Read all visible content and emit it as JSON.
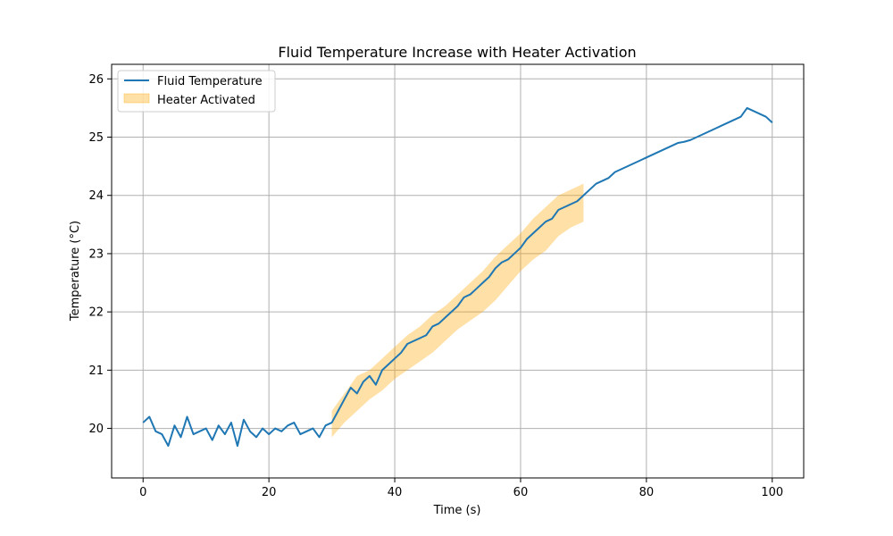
{
  "chart_data": {
    "type": "line",
    "title": "Fluid Temperature Increase with Heater Activation",
    "xlabel": "Time (s)",
    "ylabel": "Temperature (°C)",
    "xlim": [
      -5,
      105
    ],
    "ylim": [
      19.15,
      26.25
    ],
    "xticks": [
      0,
      20,
      40,
      60,
      80,
      100
    ],
    "yticks": [
      20,
      21,
      22,
      23,
      24,
      25,
      26
    ],
    "grid": true,
    "legend_position": "top-left",
    "series": [
      {
        "name": "Fluid Temperature",
        "type": "line",
        "color": "#1f77b4",
        "x": [
          0,
          1,
          2,
          3,
          4,
          5,
          6,
          7,
          8,
          9,
          10,
          11,
          12,
          13,
          14,
          15,
          16,
          17,
          18,
          19,
          20,
          21,
          22,
          23,
          24,
          25,
          26,
          27,
          28,
          29,
          30,
          31,
          32,
          33,
          34,
          35,
          36,
          37,
          38,
          39,
          40,
          41,
          42,
          43,
          44,
          45,
          46,
          47,
          48,
          49,
          50,
          51,
          52,
          53,
          54,
          55,
          56,
          57,
          58,
          59,
          60,
          61,
          62,
          63,
          64,
          65,
          66,
          67,
          68,
          69,
          70,
          71,
          72,
          73,
          74,
          75,
          76,
          77,
          78,
          79,
          80,
          81,
          82,
          83,
          84,
          85,
          86,
          87,
          88,
          89,
          90,
          91,
          92,
          93,
          94,
          95,
          96,
          97,
          98,
          99,
          100
        ],
        "y": [
          20.1,
          20.2,
          19.95,
          19.9,
          19.7,
          20.05,
          19.85,
          20.2,
          19.9,
          19.95,
          20.0,
          19.8,
          20.05,
          19.9,
          20.1,
          19.7,
          20.15,
          19.95,
          19.85,
          20.0,
          19.9,
          20.0,
          19.95,
          20.05,
          20.1,
          19.9,
          19.95,
          20.0,
          19.85,
          20.05,
          20.1,
          20.3,
          20.5,
          20.7,
          20.6,
          20.8,
          20.9,
          20.75,
          21.0,
          21.1,
          21.2,
          21.3,
          21.45,
          21.5,
          21.55,
          21.6,
          21.75,
          21.8,
          21.9,
          22.0,
          22.1,
          22.25,
          22.3,
          22.4,
          22.5,
          22.6,
          22.75,
          22.85,
          22.9,
          23.0,
          23.1,
          23.25,
          23.35,
          23.45,
          23.55,
          23.6,
          23.75,
          23.8,
          23.85,
          23.9,
          24.0,
          24.1,
          24.2,
          24.25,
          24.3,
          24.4,
          24.45,
          24.5,
          24.55,
          24.6,
          24.65,
          24.7,
          24.75,
          24.8,
          24.85,
          24.9,
          24.92,
          24.95,
          25.0,
          25.05,
          25.1,
          25.15,
          25.2,
          25.25,
          25.3,
          25.35,
          25.5,
          25.45,
          25.4,
          25.35,
          25.25
        ]
      },
      {
        "name": "Heater Activated",
        "type": "band",
        "color": "#ffa500",
        "x": [
          30,
          32,
          34,
          36,
          38,
          40,
          42,
          44,
          46,
          48,
          50,
          52,
          54,
          56,
          58,
          60,
          62,
          64,
          66,
          68,
          70
        ],
        "lower": [
          19.85,
          20.1,
          20.3,
          20.5,
          20.65,
          20.85,
          21.0,
          21.15,
          21.3,
          21.5,
          21.7,
          21.85,
          22.0,
          22.2,
          22.45,
          22.7,
          22.9,
          23.05,
          23.3,
          23.45,
          23.55
        ],
        "upper": [
          20.3,
          20.6,
          20.9,
          21.0,
          21.2,
          21.4,
          21.6,
          21.75,
          21.95,
          22.1,
          22.3,
          22.5,
          22.7,
          22.95,
          23.15,
          23.35,
          23.6,
          23.8,
          24.0,
          24.1,
          24.2
        ]
      }
    ]
  }
}
